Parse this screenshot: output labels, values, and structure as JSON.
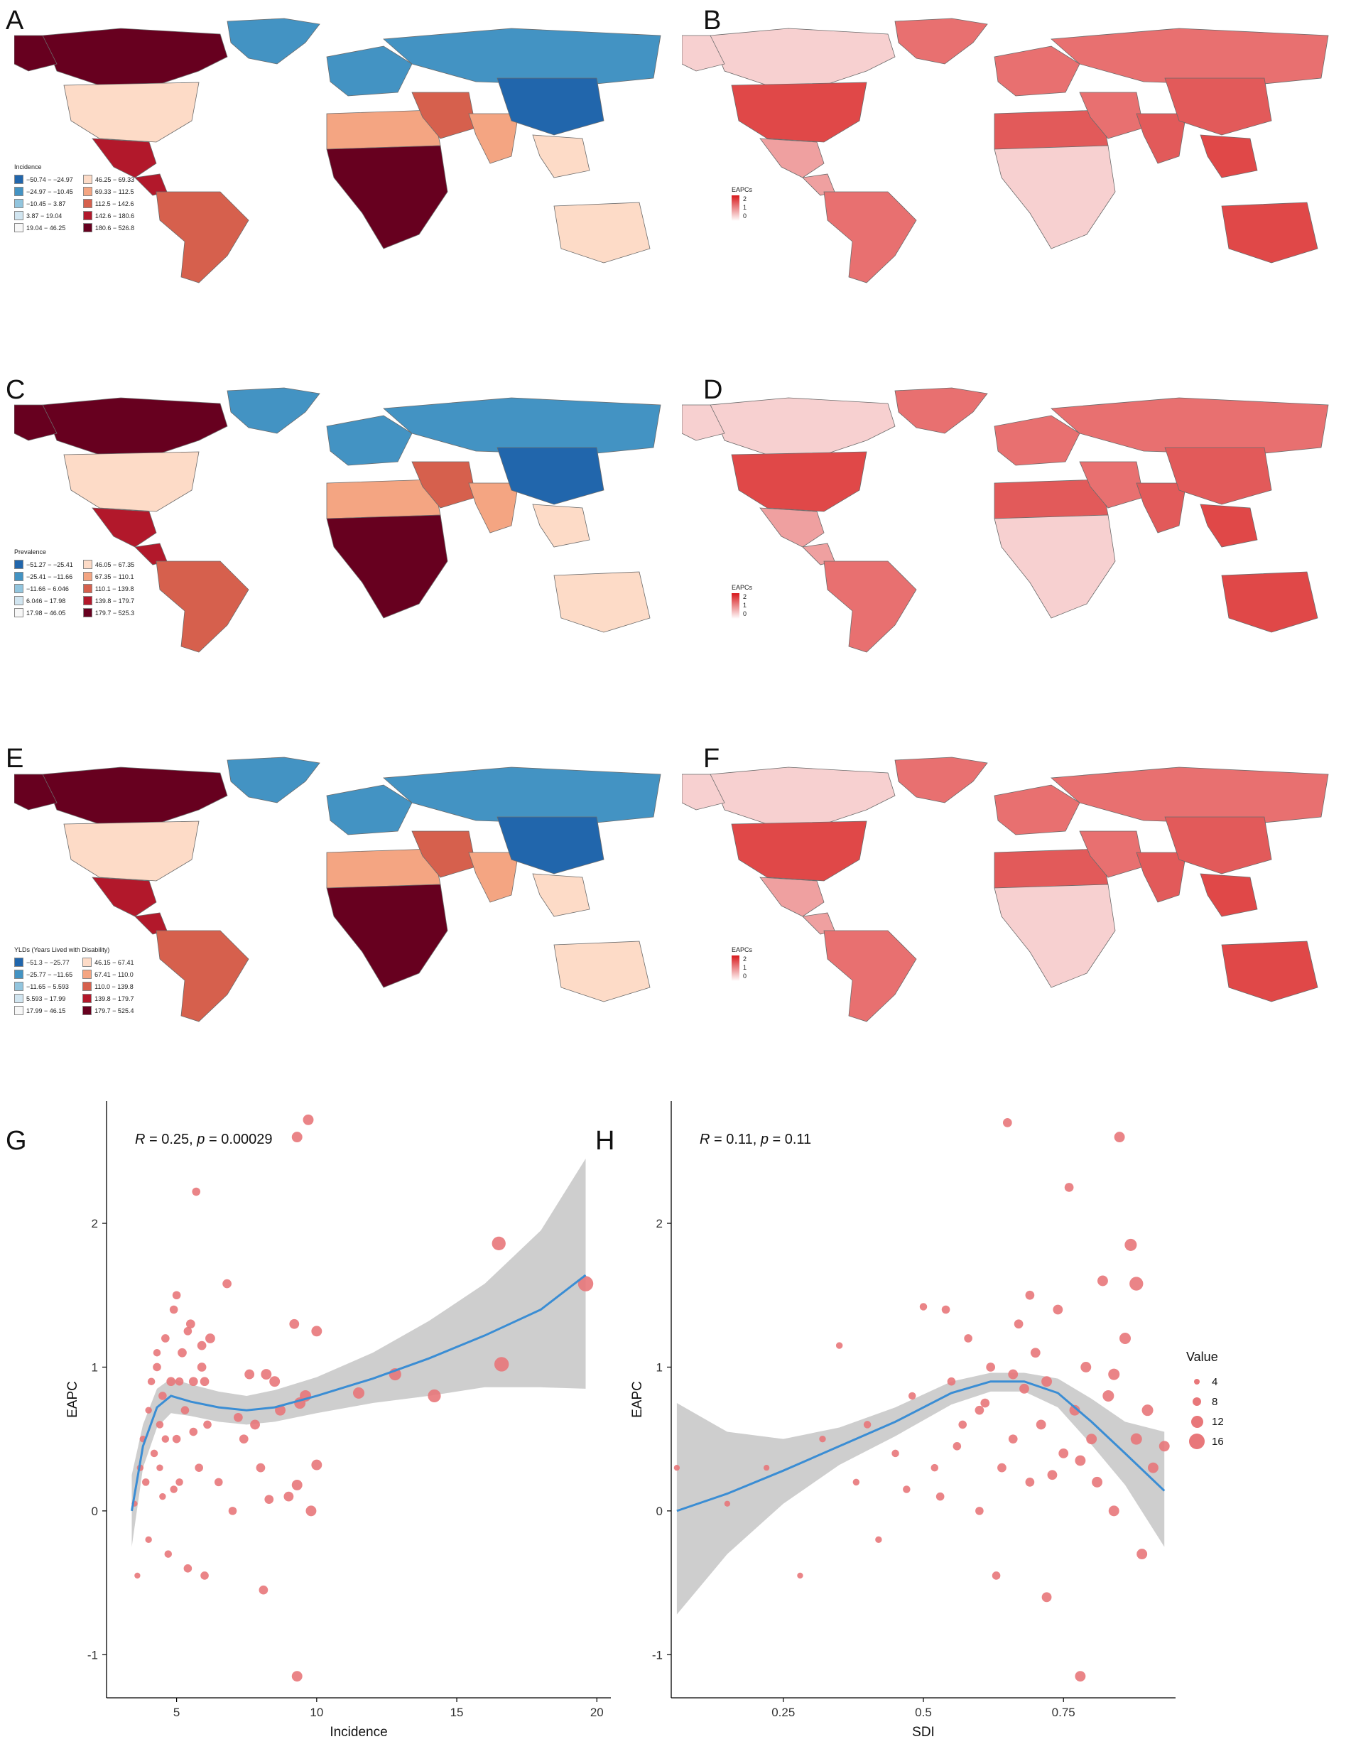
{
  "panels": {
    "A": "A",
    "B": "B",
    "C": "C",
    "D": "D",
    "E": "E",
    "F": "F",
    "G": "G",
    "H": "H"
  },
  "colors": {
    "blue_scale": [
      "#2166ac",
      "#4393c3",
      "#92c5de",
      "#d1e5f0",
      "#f7f7f7"
    ],
    "red_scale": [
      "#fddbc7",
      "#f4a582",
      "#d6604d",
      "#b2182b",
      "#67001f"
    ],
    "eapc_high": "#d7191c",
    "eapc_low": "#ffffff",
    "point": "#e8777a",
    "smooth": "#3a8dd4",
    "ribbon": "#bdbdbd"
  },
  "maps": [
    {
      "id": "A",
      "legend_title": "Incidence",
      "legend_left": [
        "−50.74 − −24.97",
        "−24.97 − −10.45",
        "−10.45 − 3.87",
        "3.87 − 19.04",
        "19.04 − 46.25"
      ],
      "legend_right": [
        "46.25 − 69.33",
        "69.33 − 112.5",
        "112.5 − 142.6",
        "142.6 − 180.6",
        "180.6 − 526.8"
      ]
    },
    {
      "id": "C",
      "legend_title": "Prevalence",
      "legend_left": [
        "−51.27 − −25.41",
        "−25.41 − −11.66",
        "−11.66 − 6.046",
        "6.046 − 17.98",
        "17.98 − 46.05"
      ],
      "legend_right": [
        "46.05 − 67.35",
        "67.35 − 110.1",
        "110.1 − 139.8",
        "139.8 − 179.7",
        "179.7 − 525.3"
      ]
    },
    {
      "id": "E",
      "legend_title": "YLDs (Years Lived with Disability)",
      "legend_left": [
        "−51.3 − −25.77",
        "−25.77 − −11.65",
        "−11.65 − 5.593",
        "5.593 − 17.99",
        "17.99 − 46.15"
      ],
      "legend_right": [
        "46.15 − 67.41",
        "67.41 − 110.0",
        "110.0 − 139.8",
        "139.8 − 179.7",
        "179.7 − 525.4"
      ]
    }
  ],
  "eapc_maps": [
    {
      "id": "B",
      "legend_title": "EAPCs",
      "ticks": [
        "2",
        "1",
        "0"
      ]
    },
    {
      "id": "D",
      "legend_title": "EAPCs",
      "ticks": [
        "2",
        "1",
        "0"
      ]
    },
    {
      "id": "F",
      "legend_title": "EAPCs",
      "ticks": [
        "2",
        "1",
        "0"
      ]
    }
  ],
  "chart_data": [
    {
      "id": "G",
      "type": "scatter",
      "xlabel": "Incidence",
      "ylabel": "EAPC",
      "annotation": "R = 0.25, p = 0.00029",
      "annotation_parts": {
        "r_label": "R",
        "r_value": " = 0.25, ",
        "p_label": "p",
        "p_value": " = 0.00029"
      },
      "xlim": [
        2.5,
        20.5
      ],
      "ylim": [
        -1.3,
        2.85
      ],
      "xticks": [
        5,
        10,
        15,
        20
      ],
      "yticks": [
        -1,
        0,
        1,
        2
      ],
      "grid": false,
      "smooth": {
        "x": [
          3.4,
          3.8,
          4.3,
          4.8,
          5.5,
          6.5,
          7.5,
          8.5,
          10,
          12,
          14,
          16,
          18,
          19.6
        ],
        "y": [
          0.0,
          0.45,
          0.72,
          0.8,
          0.76,
          0.72,
          0.7,
          0.72,
          0.8,
          0.92,
          1.06,
          1.22,
          1.4,
          1.64
        ]
      },
      "ribbon_upper": [
        0.25,
        0.6,
        0.85,
        0.92,
        0.88,
        0.83,
        0.8,
        0.84,
        0.93,
        1.1,
        1.32,
        1.58,
        1.95,
        2.45
      ],
      "ribbon_lower": [
        -0.25,
        0.3,
        0.58,
        0.68,
        0.66,
        0.62,
        0.6,
        0.62,
        0.68,
        0.75,
        0.8,
        0.86,
        0.86,
        0.85
      ],
      "points": [
        [
          3.5,
          0.05,
          3
        ],
        [
          3.6,
          -0.45,
          3
        ],
        [
          3.7,
          0.3,
          4
        ],
        [
          3.8,
          0.5,
          4
        ],
        [
          3.9,
          0.2,
          5
        ],
        [
          4.0,
          0.7,
          4
        ],
        [
          4.0,
          -0.2,
          4
        ],
        [
          4.1,
          0.9,
          5
        ],
        [
          4.2,
          0.4,
          5
        ],
        [
          4.3,
          1.0,
          6
        ],
        [
          4.4,
          0.6,
          5
        ],
        [
          4.5,
          0.8,
          6
        ],
        [
          4.5,
          0.1,
          4
        ],
        [
          4.6,
          1.2,
          6
        ],
        [
          4.7,
          -0.3,
          5
        ],
        [
          4.8,
          0.9,
          7
        ],
        [
          4.9,
          1.4,
          6
        ],
        [
          5.0,
          0.5,
          6
        ],
        [
          5.0,
          1.5,
          6
        ],
        [
          5.1,
          0.2,
          5
        ],
        [
          5.2,
          1.1,
          7
        ],
        [
          5.3,
          0.7,
          6
        ],
        [
          5.4,
          -0.4,
          6
        ],
        [
          5.5,
          1.3,
          7
        ],
        [
          5.6,
          0.9,
          7
        ],
        [
          5.7,
          2.22,
          6
        ],
        [
          5.8,
          0.3,
          6
        ],
        [
          5.9,
          1.0,
          7
        ],
        [
          6.0,
          -0.45,
          6
        ],
        [
          6.1,
          0.6,
          6
        ],
        [
          6.2,
          1.2,
          8
        ],
        [
          4.3,
          1.1,
          5
        ],
        [
          4.6,
          0.5,
          5
        ],
        [
          5.1,
          0.9,
          6
        ],
        [
          5.4,
          1.25,
          6
        ],
        [
          5.9,
          1.15,
          7
        ],
        [
          6.0,
          0.9,
          7
        ],
        [
          4.4,
          0.3,
          4
        ],
        [
          4.9,
          0.15,
          5
        ],
        [
          5.6,
          0.55,
          6
        ],
        [
          6.8,
          1.58,
          7
        ],
        [
          7.0,
          0.0,
          6
        ],
        [
          7.4,
          0.5,
          7
        ],
        [
          7.6,
          0.95,
          8
        ],
        [
          7.8,
          0.6,
          8
        ],
        [
          8.0,
          0.3,
          7
        ],
        [
          8.1,
          -0.55,
          7
        ],
        [
          8.3,
          0.08,
          7
        ],
        [
          8.5,
          0.9,
          9
        ],
        [
          8.7,
          0.7,
          9
        ],
        [
          9.0,
          0.1,
          8
        ],
        [
          9.2,
          1.3,
          8
        ],
        [
          9.3,
          0.18,
          9
        ],
        [
          9.4,
          0.75,
          10
        ],
        [
          9.6,
          0.8,
          10
        ],
        [
          9.8,
          0.0,
          9
        ],
        [
          9.3,
          2.6,
          9
        ],
        [
          9.7,
          2.72,
          9
        ],
        [
          10.0,
          1.25,
          9
        ],
        [
          10.0,
          0.32,
          9
        ],
        [
          9.3,
          -1.15,
          9
        ],
        [
          11.5,
          0.82,
          10
        ],
        [
          12.8,
          0.95,
          11
        ],
        [
          14.2,
          0.8,
          12
        ],
        [
          16.5,
          1.86,
          13
        ],
        [
          16.6,
          1.02,
          14
        ],
        [
          19.6,
          1.58,
          15
        ],
        [
          8.2,
          0.95,
          9
        ],
        [
          7.2,
          0.65,
          7
        ],
        [
          6.5,
          0.2,
          6
        ]
      ]
    },
    {
      "id": "H",
      "type": "scatter",
      "xlabel": "SDI",
      "ylabel": "EAPC",
      "annotation": "R = 0.11, p = 0.11",
      "annotation_parts": {
        "r_label": "R",
        "r_value": " = 0.11, ",
        "p_label": "p",
        "p_value": " = 0.11"
      },
      "xlim": [
        0.05,
        0.95
      ],
      "ylim": [
        -1.3,
        2.85
      ],
      "xticks": [
        0.25,
        0.5,
        0.75
      ],
      "yticks": [
        -1,
        0,
        1,
        2
      ],
      "grid": false,
      "smooth": {
        "x": [
          0.06,
          0.15,
          0.25,
          0.35,
          0.45,
          0.55,
          0.62,
          0.68,
          0.74,
          0.8,
          0.86,
          0.93
        ],
        "y": [
          0.0,
          0.12,
          0.28,
          0.45,
          0.62,
          0.82,
          0.9,
          0.9,
          0.82,
          0.62,
          0.4,
          0.14
        ]
      },
      "ribbon_upper": [
        0.75,
        0.55,
        0.5,
        0.58,
        0.72,
        0.9,
        0.96,
        0.96,
        0.92,
        0.78,
        0.62,
        0.55
      ],
      "ribbon_lower": [
        -0.72,
        -0.3,
        0.05,
        0.32,
        0.52,
        0.74,
        0.83,
        0.83,
        0.72,
        0.46,
        0.18,
        -0.25
      ],
      "points": [
        [
          0.06,
          0.3,
          3
        ],
        [
          0.15,
          0.05,
          3
        ],
        [
          0.22,
          0.3,
          3
        ],
        [
          0.28,
          -0.45,
          3
        ],
        [
          0.32,
          0.5,
          4
        ],
        [
          0.35,
          1.15,
          4
        ],
        [
          0.38,
          0.2,
          4
        ],
        [
          0.4,
          0.6,
          5
        ],
        [
          0.42,
          -0.2,
          4
        ],
        [
          0.45,
          0.4,
          5
        ],
        [
          0.48,
          0.8,
          5
        ],
        [
          0.5,
          1.42,
          5
        ],
        [
          0.52,
          0.3,
          5
        ],
        [
          0.54,
          1.4,
          6
        ],
        [
          0.55,
          0.9,
          6
        ],
        [
          0.57,
          0.6,
          6
        ],
        [
          0.58,
          1.2,
          6
        ],
        [
          0.6,
          0.7,
          7
        ],
        [
          0.6,
          0.0,
          6
        ],
        [
          0.62,
          1.0,
          7
        ],
        [
          0.63,
          -0.45,
          6
        ],
        [
          0.65,
          2.7,
          7
        ],
        [
          0.66,
          0.5,
          7
        ],
        [
          0.67,
          1.3,
          7
        ],
        [
          0.68,
          0.85,
          8
        ],
        [
          0.69,
          0.2,
          7
        ],
        [
          0.7,
          1.1,
          8
        ],
        [
          0.71,
          0.6,
          8
        ],
        [
          0.72,
          0.9,
          9
        ],
        [
          0.72,
          -0.6,
          8
        ],
        [
          0.74,
          1.4,
          8
        ],
        [
          0.75,
          0.4,
          8
        ],
        [
          0.76,
          2.25,
          7
        ],
        [
          0.77,
          0.7,
          9
        ],
        [
          0.78,
          -1.15,
          9
        ],
        [
          0.79,
          1.0,
          9
        ],
        [
          0.8,
          0.5,
          9
        ],
        [
          0.81,
          0.2,
          9
        ],
        [
          0.82,
          1.6,
          9
        ],
        [
          0.83,
          0.8,
          10
        ],
        [
          0.84,
          0.0,
          9
        ],
        [
          0.85,
          2.6,
          9
        ],
        [
          0.86,
          1.2,
          10
        ],
        [
          0.87,
          1.85,
          11
        ],
        [
          0.88,
          1.58,
          13
        ],
        [
          0.88,
          0.5,
          10
        ],
        [
          0.89,
          -0.3,
          9
        ],
        [
          0.9,
          0.7,
          10
        ],
        [
          0.91,
          0.3,
          9
        ],
        [
          0.93,
          0.45,
          9
        ],
        [
          0.64,
          0.3,
          7
        ],
        [
          0.56,
          0.45,
          6
        ],
        [
          0.73,
          0.25,
          8
        ],
        [
          0.66,
          0.95,
          8
        ],
        [
          0.78,
          0.35,
          9
        ],
        [
          0.84,
          0.95,
          10
        ],
        [
          0.61,
          0.75,
          7
        ],
        [
          0.69,
          1.5,
          7
        ],
        [
          0.53,
          0.1,
          6
        ],
        [
          0.47,
          0.15,
          5
        ]
      ]
    }
  ],
  "size_legend": {
    "title": "Value",
    "entries": [
      {
        "label": "4",
        "size": 4
      },
      {
        "label": "8",
        "size": 8
      },
      {
        "label": "12",
        "size": 12
      },
      {
        "label": "16",
        "size": 16
      }
    ]
  }
}
